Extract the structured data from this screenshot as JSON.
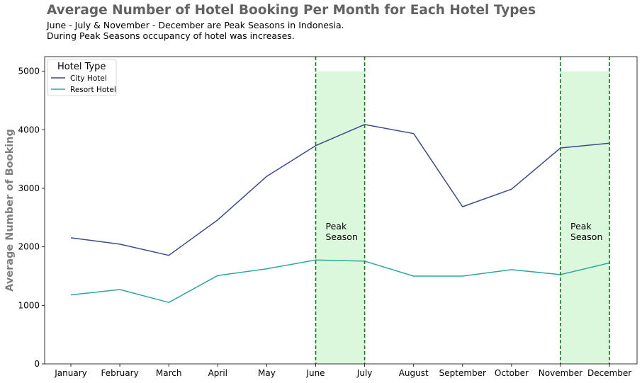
{
  "chart_data": {
    "type": "line",
    "title": "Average Number of Hotel Booking Per Month for Each Hotel Types",
    "subtitle_lines": [
      "June - July & November - December are Peak Seasons in Indonesia.",
      "During Peak Seasons occupancy of hotel was increases."
    ],
    "xlabel": "",
    "ylabel": "Average Number of Booking",
    "categories": [
      "January",
      "February",
      "March",
      "April",
      "May",
      "June",
      "July",
      "August",
      "September",
      "October",
      "November",
      "December"
    ],
    "ylim": [
      0,
      5250
    ],
    "yticks": [
      0,
      1000,
      2000,
      3000,
      4000,
      5000
    ],
    "grid": false,
    "legend": {
      "title": "Hotel Type",
      "placement": "top-left"
    },
    "series": [
      {
        "name": "City Hotel",
        "color": "#3b4a8c",
        "values": [
          2155,
          2045,
          1855,
          2460,
          3205,
          3730,
          4090,
          3935,
          2685,
          2985,
          3690,
          3770
        ]
      },
      {
        "name": "Resort Hotel",
        "color": "#2ba8a3",
        "values": [
          1180,
          1270,
          1050,
          1510,
          1625,
          1775,
          1755,
          1500,
          1500,
          1610,
          1525,
          1725
        ]
      }
    ],
    "peak_seasons": [
      {
        "from": "June",
        "to": "July",
        "ymax": 5000,
        "label_lines": [
          "Peak",
          "Season"
        ]
      },
      {
        "from": "November",
        "to": "December",
        "ymax": 5000,
        "label_lines": [
          "Peak",
          "Season"
        ]
      }
    ],
    "colors": {
      "peak_fill": "#dcf8dc",
      "peak_line": "#0f7f0f"
    }
  }
}
